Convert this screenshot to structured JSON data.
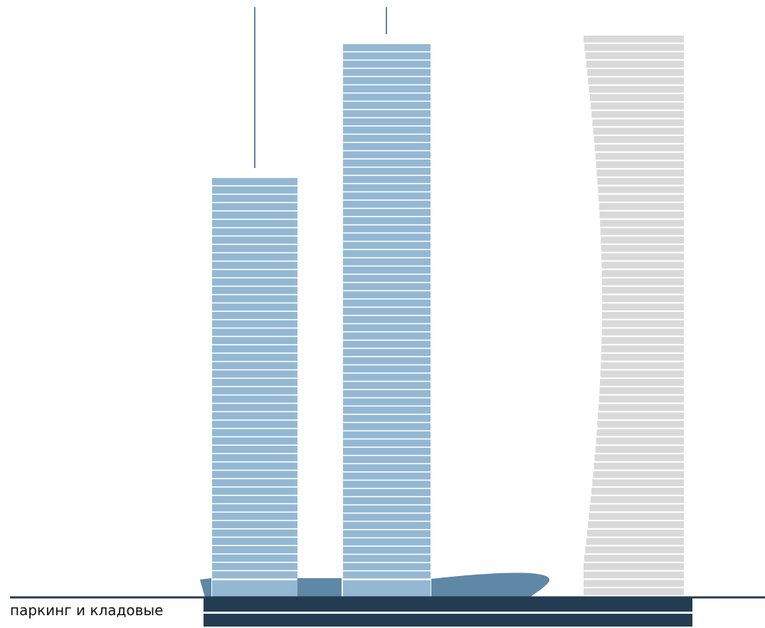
{
  "legend": {
    "parking_label": "паркинг и кладовые"
  },
  "colors": {
    "tower_glass": "#94b8d3",
    "podium": "#5f87a6",
    "parking": "#243c52",
    "ground_line": "#243c52",
    "neighbor_tower": "#d9d9d9",
    "floor_separator": "#ffffff",
    "spire": "#5f87a6"
  },
  "towers": [
    {
      "name": "tower-left",
      "floors": 48,
      "has_spire": true
    },
    {
      "name": "tower-center",
      "floors": 65,
      "has_spire": true
    }
  ],
  "neighbor": {
    "name": "neighbor-tower",
    "floors": 67,
    "style": "twisted"
  },
  "parking": {
    "levels": 2
  }
}
